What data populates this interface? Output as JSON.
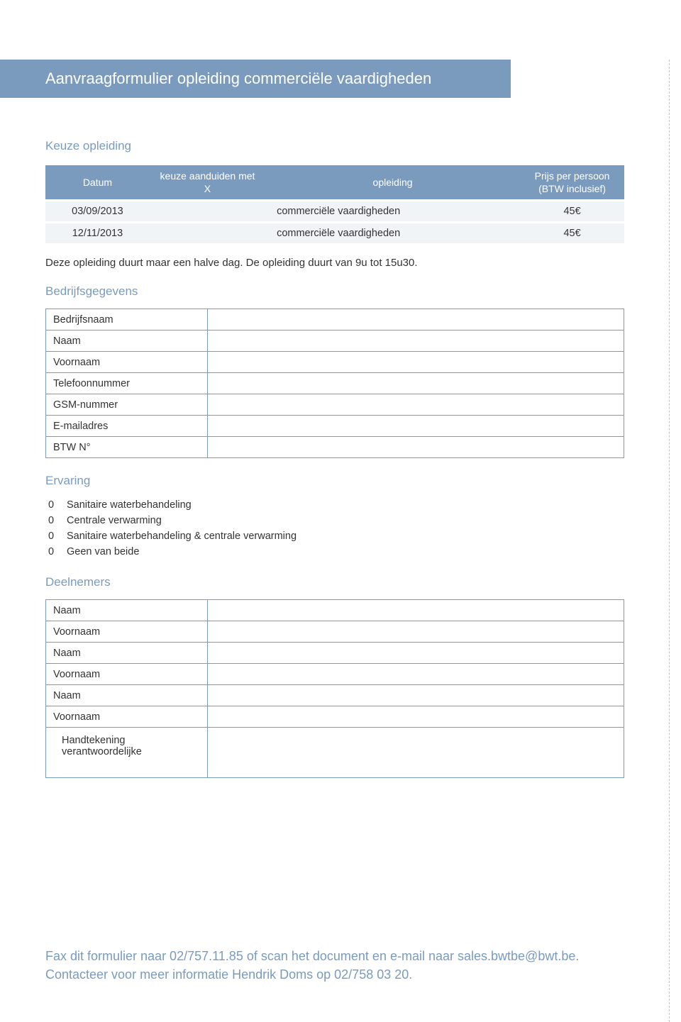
{
  "colors": {
    "header_bg": "#7a9bbd",
    "header_text": "#ffffff",
    "section_title": "#7a9bbd",
    "row_bg": "#f1f4f7",
    "border": "#7a9bbd",
    "body_text": "#333333",
    "dashed_border": "#b0c4d8",
    "footer_text": "#7a9bbd"
  },
  "typography": {
    "title_fontsize": 22,
    "section_fontsize": 17,
    "body_fontsize": 14.5,
    "footer_fontsize": 18,
    "font_family": "Helvetica Neue, Arial, sans-serif"
  },
  "header": {
    "title": "Aanvraagformulier opleiding commerciële vaardigheden"
  },
  "keuze": {
    "title": "Keuze opleiding",
    "columns": {
      "datum": "Datum",
      "aanduiden": "keuze aanduiden met X",
      "opleiding": "opleiding",
      "prijs": "Prijs per persoon (BTW inclusief)"
    },
    "col_widths": [
      "18%",
      "20%",
      "44%",
      "18%"
    ],
    "rows": [
      {
        "datum": "03/09/2013",
        "keuze": "",
        "opleiding": "commerciële vaardigheden",
        "prijs": "45€"
      },
      {
        "datum": "12/11/2013",
        "keuze": "",
        "opleiding": "commerciële vaardigheden",
        "prijs": "45€"
      }
    ],
    "note": "Deze opleiding duurt maar een halve dag. De opleiding duurt van 9u tot 15u30."
  },
  "bedrijf": {
    "title": "Bedrijfsgegevens",
    "label_col_width": "28%",
    "fields": [
      {
        "label": "Bedrijfsnaam",
        "value": ""
      },
      {
        "label": "Naam",
        "value": ""
      },
      {
        "label": "Voornaam",
        "value": ""
      },
      {
        "label": "Telefoonnummer",
        "value": ""
      },
      {
        "label": "GSM-nummer",
        "value": ""
      },
      {
        "label": "E-mailadres",
        "value": ""
      },
      {
        "label": "BTW N°",
        "value": ""
      }
    ]
  },
  "ervaring": {
    "title": "Ervaring",
    "marker": "0",
    "options": [
      "Sanitaire waterbehandeling",
      "Centrale verwarming",
      "Sanitaire waterbehandeling & centrale verwarming",
      "Geen van beide"
    ]
  },
  "deelnemers": {
    "title": "Deelnemers",
    "label_col_width": "28%",
    "fields": [
      {
        "label": "Naam",
        "value": ""
      },
      {
        "label": "Voornaam",
        "value": ""
      },
      {
        "label": "Naam",
        "value": ""
      },
      {
        "label": "Voornaam",
        "value": ""
      },
      {
        "label": "Naam",
        "value": ""
      },
      {
        "label": "Voornaam",
        "value": ""
      }
    ],
    "signature_label": "Handtekening verantwoordelijke",
    "signature_value": ""
  },
  "footer": {
    "text": "Fax dit formulier naar 02/757.11.85 of scan het document en e-mail naar sales.bwtbe@bwt.be. Contacteer voor meer informatie Hendrik Doms op 02/758 03 20."
  }
}
